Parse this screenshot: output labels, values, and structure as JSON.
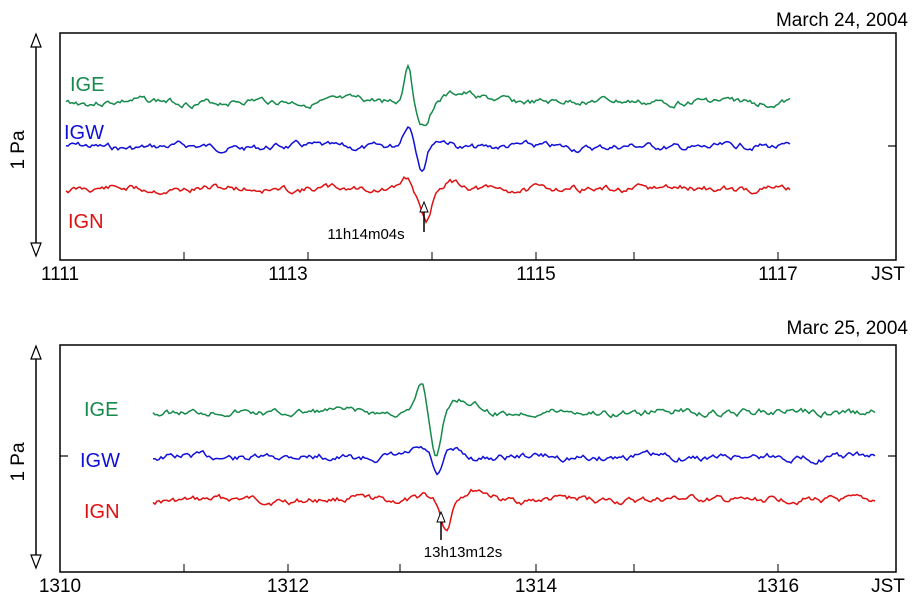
{
  "chart_data": [
    {
      "type": "line",
      "date_label": "March 24, 2004",
      "scale_label": "1 Pa",
      "x_unit_label": "JST",
      "x_ticks": [
        "1111",
        "1113",
        "1115",
        "1117"
      ],
      "xlim": [
        "11:11",
        "11:18"
      ],
      "series": [
        {
          "name": "IGE",
          "color": "#158a4a"
        },
        {
          "name": "IGW",
          "color": "#1010d8"
        },
        {
          "name": "IGN",
          "color": "#e01010"
        }
      ],
      "annotation": {
        "text": "11h14m04s",
        "time": "11:14:04"
      }
    },
    {
      "type": "line",
      "date_label": "Marc 25, 2004",
      "scale_label": "1 Pa",
      "x_unit_label": "JST",
      "x_ticks": [
        "1310",
        "1312",
        "1314",
        "1316"
      ],
      "xlim": [
        "13:10",
        "13:17"
      ],
      "series": [
        {
          "name": "IGE",
          "color": "#158a4a"
        },
        {
          "name": "IGW",
          "color": "#1010d8"
        },
        {
          "name": "IGN",
          "color": "#e01010"
        }
      ],
      "annotation": {
        "text": "13h13m12s",
        "time": "13:13:12"
      }
    }
  ]
}
